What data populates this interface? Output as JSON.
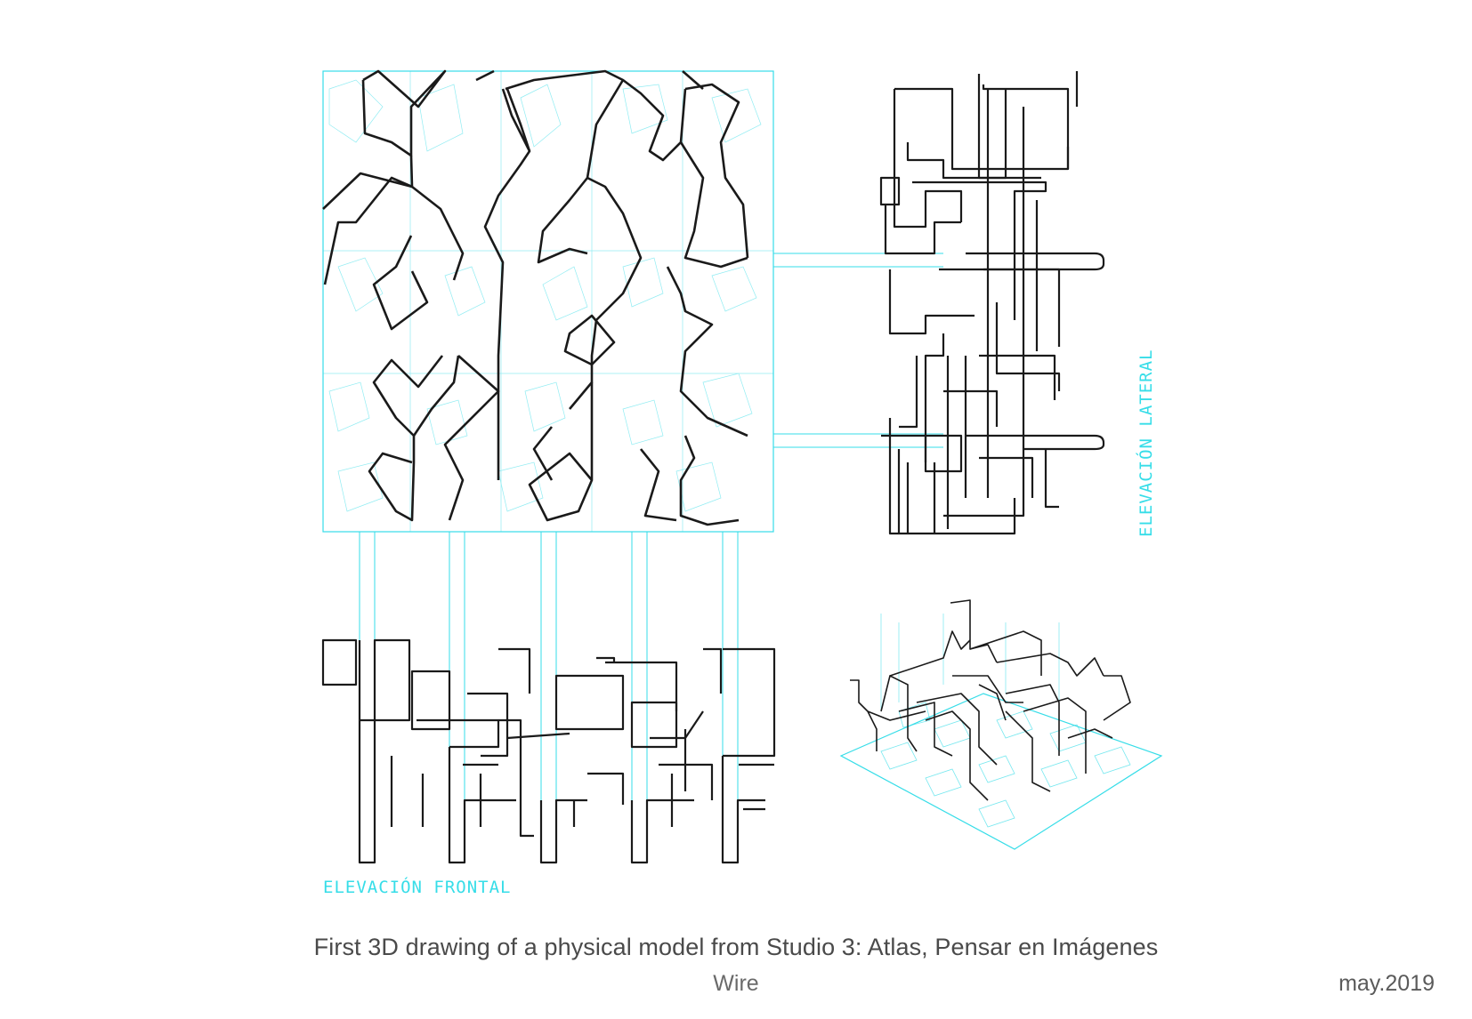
{
  "labels": {
    "frontal": "ELEVACIÓN FRONTAL",
    "lateral": "ELEVACIÓN LATERAL"
  },
  "caption": {
    "title": "First 3D drawing of a physical model from Studio 3: Atlas, Pensar en Imágenes",
    "subtitle": "Wire",
    "date": "may.2019"
  },
  "colors": {
    "background": "#ffffff",
    "construction_line": "#36dde8",
    "wire": "#1a1a1a",
    "caption_text": "#4a4a4a"
  },
  "views": {
    "plan": "plan-view",
    "frontal": "front-elevation",
    "lateral": "side-elevation",
    "axonometric": "axonometric-view"
  }
}
